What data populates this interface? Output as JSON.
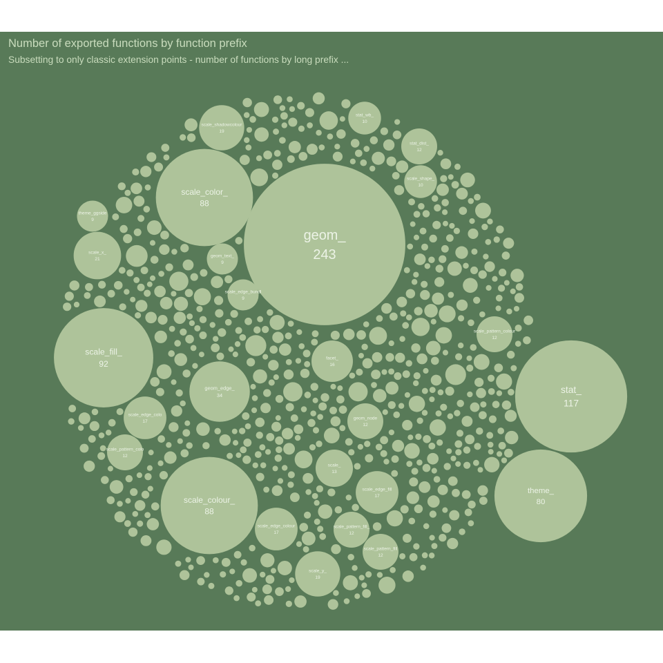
{
  "title": "Number of exported functions by function prefix",
  "subtitle": "Subsetting to only classic extension points - number of functions by long prefix ...",
  "colors": {
    "panel": "#587a58",
    "bubble": "#aec39a",
    "label": "#ecf3e6",
    "title": "#c9dcbd"
  },
  "chart_data": {
    "type": "packed-bubble",
    "title": "Number of exported functions by function prefix",
    "subtitle": "Subsetting to only classic extension points - number of functions by long prefix ...",
    "nodes": [
      {
        "label": "geom_",
        "value": 243
      },
      {
        "label": "stat_",
        "value": 117
      },
      {
        "label": "scale_fill_",
        "value": 92
      },
      {
        "label": "scale_color_",
        "value": 88
      },
      {
        "label": "scale_colour_",
        "value": 88
      },
      {
        "label": "theme_",
        "value": 80
      },
      {
        "label": "geom_edge_",
        "value": 34
      },
      {
        "label": "scale_x_",
        "value": 21
      },
      {
        "label": "scale_shadowcolour",
        "value": 19
      },
      {
        "label": "scale_y_",
        "value": 19
      },
      {
        "label": "scale_edge_colour",
        "value": 17
      },
      {
        "label": "scale_edge_fill",
        "value": 17
      },
      {
        "label": "scale_edge_colo",
        "value": 17
      },
      {
        "label": "facet_",
        "value": 16
      },
      {
        "label": "scale_",
        "value": 13
      },
      {
        "label": "scale_pattern_fill",
        "value": 12
      },
      {
        "label": "scale_pattern_colour",
        "value": 12
      },
      {
        "label": "stat_dist_",
        "value": 12
      },
      {
        "label": "geom_node",
        "value": 12
      },
      {
        "label": "scale_pattern_colo",
        "value": 12
      },
      {
        "label": "scale_pattern_fill_",
        "value": 12
      },
      {
        "label": "stat_wb_",
        "value": 10
      },
      {
        "label": "scale_shape_",
        "value": 10
      },
      {
        "label": "theme_ggside",
        "value": 9
      },
      {
        "label": "geom_text_",
        "value": 9
      },
      {
        "label": "scale_edge_bundl",
        "value": 9
      }
    ]
  }
}
